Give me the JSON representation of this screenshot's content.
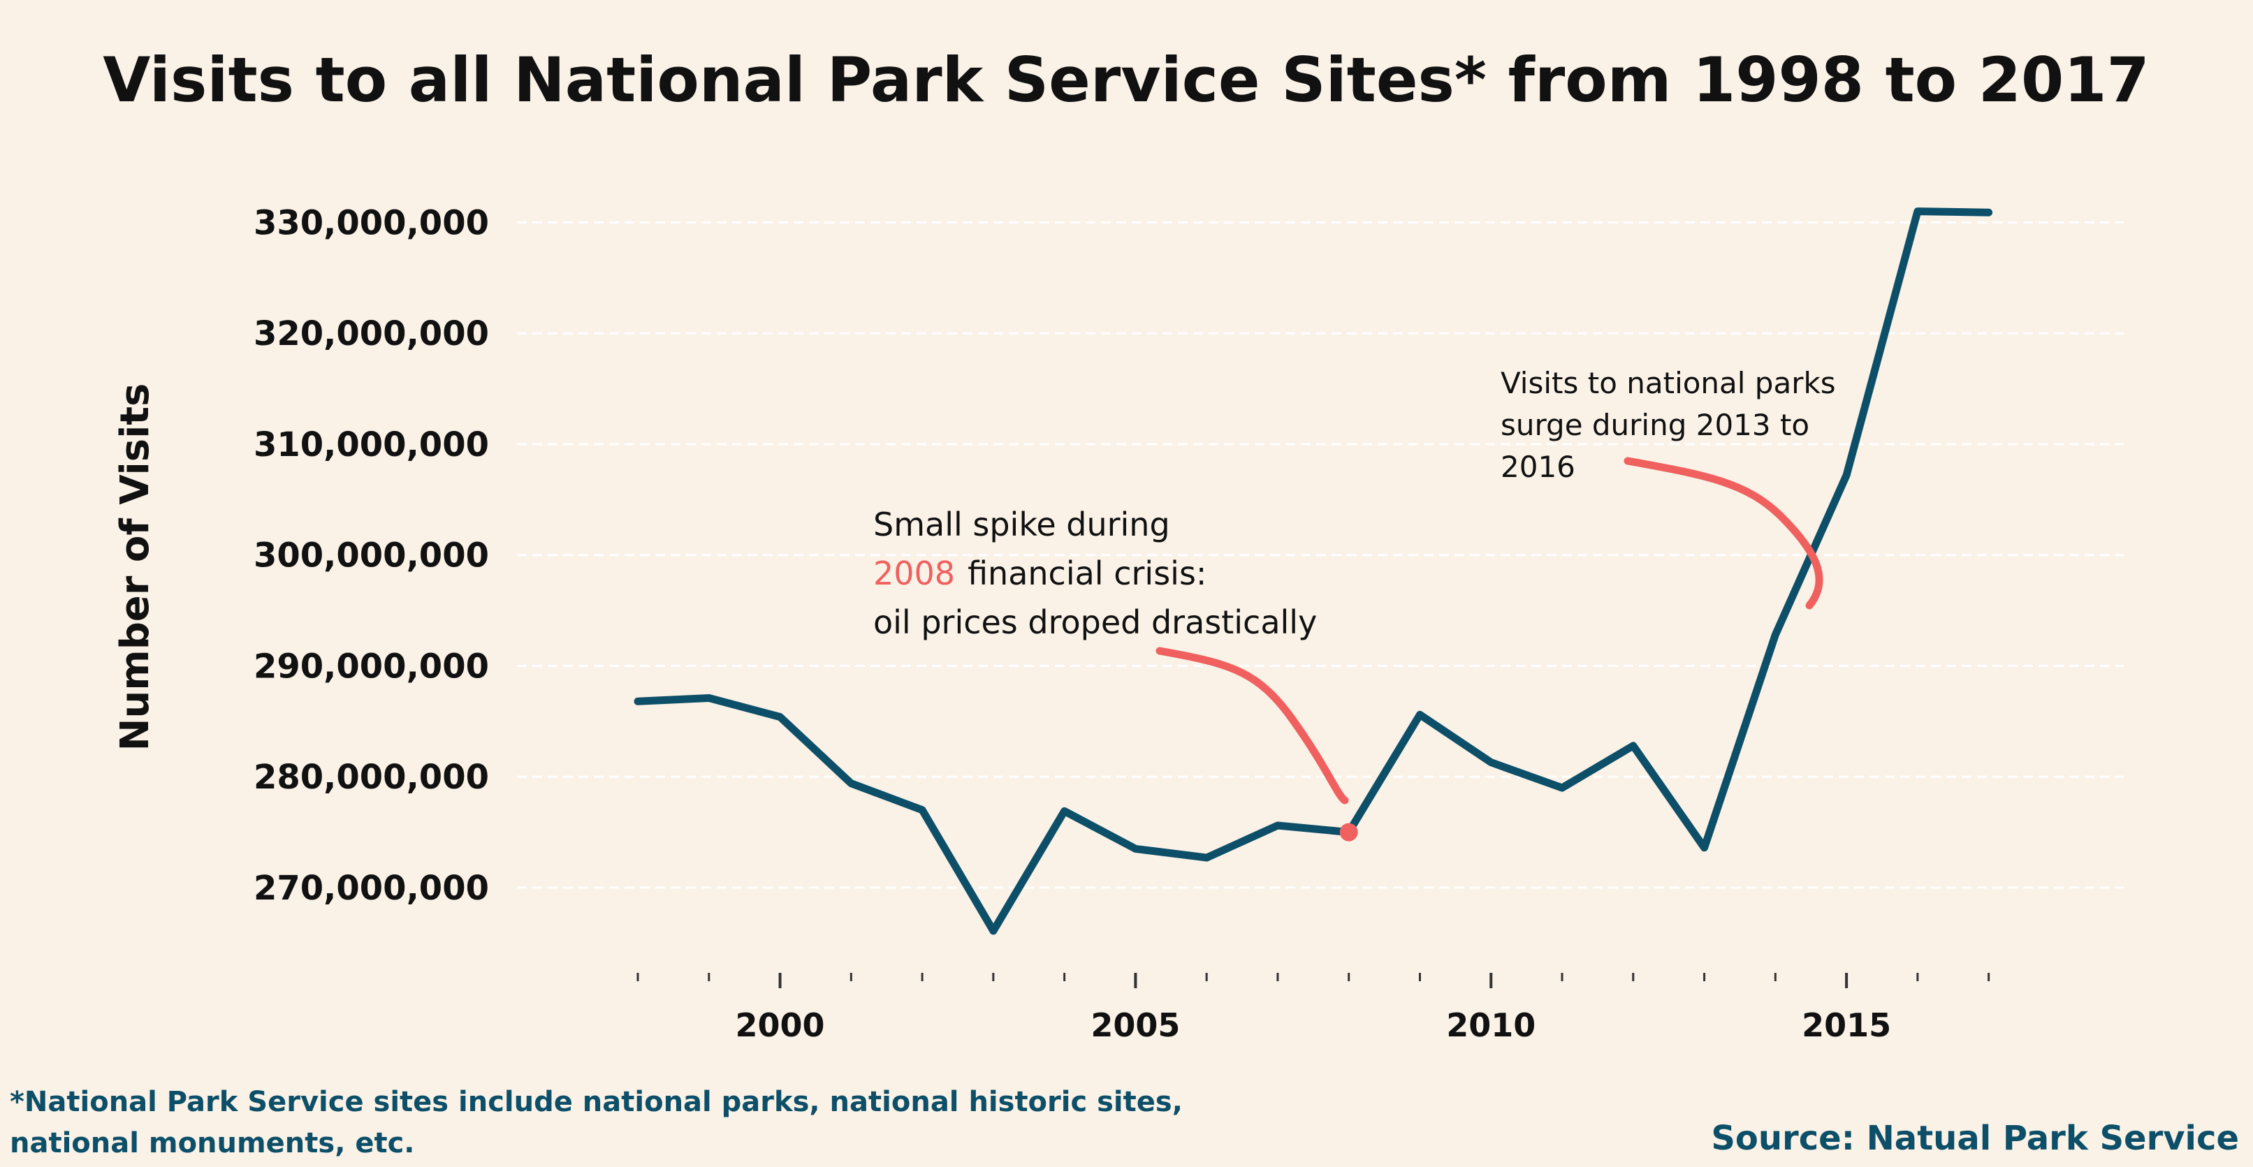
{
  "chart_data": {
    "type": "line",
    "title": "Visits to all National Park Service Sites* from 1998 to 2017",
    "ylabel": "Number of Visits",
    "xlabel": "",
    "x": [
      1998,
      1999,
      2000,
      2001,
      2002,
      2003,
      2004,
      2005,
      2006,
      2007,
      2008,
      2009,
      2010,
      2011,
      2012,
      2013,
      2014,
      2015,
      2016,
      2017
    ],
    "series": [
      {
        "values": [
          286800000,
          287100000,
          285400000,
          279400000,
          277000000,
          266100000,
          276900000,
          273500000,
          272700000,
          275600000,
          275000000,
          285600000,
          281300000,
          279000000,
          282800000,
          273600000,
          292800000,
          307200000,
          331000000,
          330900000
        ]
      }
    ],
    "xlim": [
      1996.3,
      2018.9
    ],
    "ylim": [
      262500000,
      334000000
    ],
    "yticks": [
      270000000,
      280000000,
      290000000,
      300000000,
      310000000,
      320000000,
      330000000
    ],
    "ytick_labels": [
      "270,000,000",
      "280,000,000",
      "290,000,000",
      "300,000,000",
      "310,000,000",
      "320,000,000",
      "330,000,000"
    ],
    "xticks_major": [
      2000,
      2005,
      2010,
      2015
    ],
    "xtick_labels": [
      "2000",
      "2005",
      "2010",
      "2015"
    ],
    "xticks_minor": [
      1998,
      1999,
      2001,
      2002,
      2003,
      2004,
      2006,
      2007,
      2008,
      2009,
      2011,
      2012,
      2013,
      2014,
      2016,
      2017
    ],
    "grid": "horizontal-dashed",
    "highlight_point": {
      "x": 2008,
      "y": 275000000
    },
    "annotations": [
      {
        "lines": [
          "Small spike during",
          "financial crisis:",
          "oil prices droped drastically"
        ],
        "highlight": "2008"
      },
      {
        "lines": [
          "Visits to national parks",
          "surge during 2013 to",
          "2016"
        ]
      }
    ]
  },
  "footnote": {
    "line1": "*National Park Service sites include national parks, national historic sites,",
    "line2": "national monuments, etc."
  },
  "source": "Source: Natual Park Service",
  "colors": {
    "background": "#faf2e7",
    "line": "#0d4f68",
    "accent": "#f0605f",
    "grid": "#ffffff",
    "text": "#111111"
  }
}
